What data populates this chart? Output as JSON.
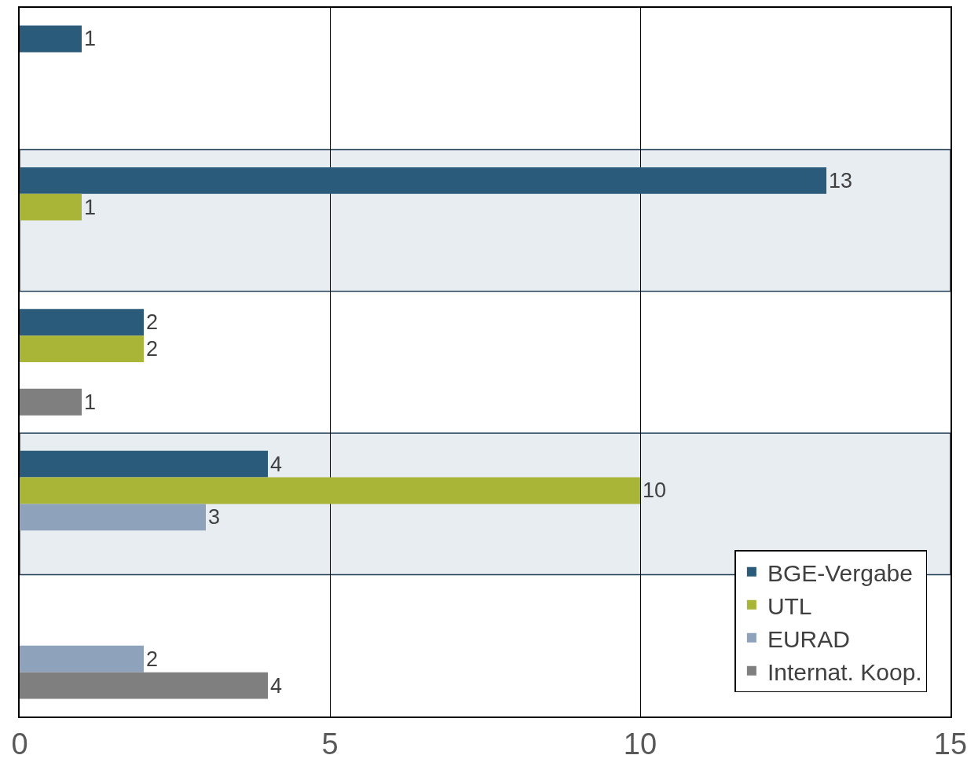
{
  "chart_data": {
    "type": "bar",
    "orientation": "horizontal",
    "categories": [
      null,
      null,
      null,
      null,
      null
    ],
    "series": [
      {
        "name": "BGE-Vergabe",
        "color": "#2a5b7a",
        "values": [
          1,
          13,
          2,
          4,
          null
        ]
      },
      {
        "name": "UTL",
        "color": "#a8b536",
        "values": [
          null,
          1,
          2,
          10,
          null
        ]
      },
      {
        "name": "EURAD",
        "color": "#8fa2bb",
        "values": [
          null,
          null,
          null,
          3,
          2
        ]
      },
      {
        "name": "Internat. Koop.",
        "color": "#7f7f7f",
        "values": [
          null,
          null,
          1,
          null,
          4
        ]
      }
    ],
    "xlim": [
      0,
      15
    ],
    "xticks": [
      0,
      5,
      10,
      15
    ],
    "grid": "x",
    "tick_labels": "x",
    "data_labels": true,
    "legend": "bottom right"
  }
}
